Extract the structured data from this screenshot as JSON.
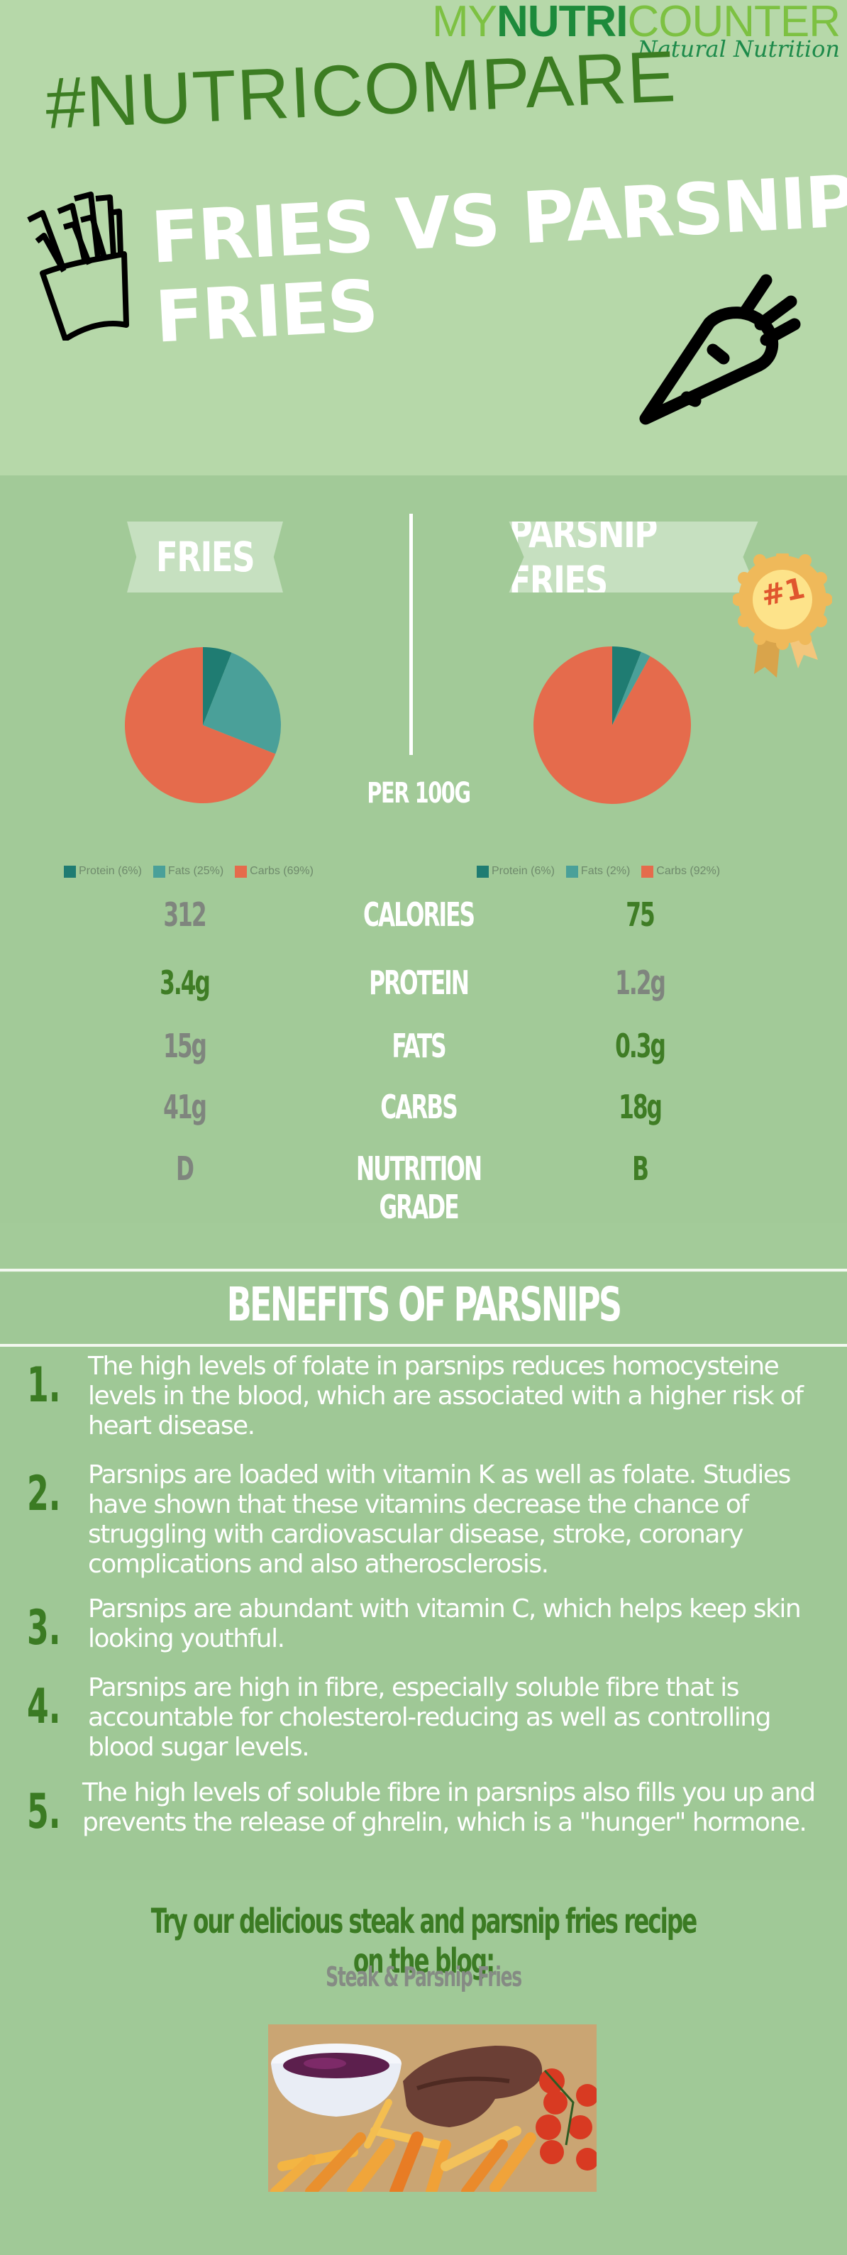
{
  "brand": {
    "logo_my": "MY",
    "logo_nutri": "NUTRI",
    "logo_counter": "COUNTER",
    "tagline": "Natural Nutrition"
  },
  "header": {
    "hashtag": "#NUTRICOMPARE",
    "title_line1": "FRIES VS PARSNIP",
    "title_line2": "FRIES",
    "icons": [
      "fries-icon",
      "carrot-icon"
    ]
  },
  "compare": {
    "left": {
      "name": "FRIES",
      "legend": [
        {
          "label": "Protein (6%)",
          "color": "#1f7c72"
        },
        {
          "label": "Fats (25%)",
          "color": "#4aa099"
        },
        {
          "label": "Carbs (69%)",
          "color": "#e56b4c"
        }
      ]
    },
    "right": {
      "name": "PARSNIP FRIES",
      "badge": "#1",
      "legend": [
        {
          "label": "Protein (6%)",
          "color": "#1f7c72"
        },
        {
          "label": "Fats (2%)",
          "color": "#4aa099"
        },
        {
          "label": "Carbs (92%)",
          "color": "#e56b4c"
        }
      ]
    },
    "per_label": "PER 100G",
    "rows": [
      {
        "label": "CALORIES",
        "left": "312",
        "right": "75",
        "winner": "right"
      },
      {
        "label": "PROTEIN",
        "left": "3.4g",
        "right": "1.2g",
        "winner": "left"
      },
      {
        "label": "FATS",
        "left": "15g",
        "right": "0.3g",
        "winner": "right"
      },
      {
        "label": "CARBS",
        "left": "41g",
        "right": "18g",
        "winner": "right"
      },
      {
        "label": "NUTRITION GRADE",
        "left": "D",
        "right": "B",
        "winner": "right"
      }
    ]
  },
  "chart_data": [
    {
      "type": "pie",
      "title": "FRIES",
      "categories": [
        "Protein",
        "Fats",
        "Carbs"
      ],
      "values": [
        6,
        25,
        69
      ],
      "colors": [
        "#1f7c72",
        "#4aa099",
        "#e56b4c"
      ],
      "legend_position": "bottom"
    },
    {
      "type": "pie",
      "title": "PARSNIP FRIES",
      "categories": [
        "Protein",
        "Fats",
        "Carbs"
      ],
      "values": [
        6,
        2,
        92
      ],
      "colors": [
        "#1f7c72",
        "#4aa099",
        "#e56b4c"
      ],
      "legend_position": "bottom"
    }
  ],
  "benefits": {
    "title": "BENEFITS OF PARSNIPS",
    "items": [
      {
        "num": "1.",
        "text": "The high levels of folate in parsnips reduces homocysteine levels in the blood, which are associated with a higher risk of heart disease."
      },
      {
        "num": "2.",
        "text": "Parsnips are loaded with vitamin K as well as folate. Studies have shown that these vitamins decrease the chance of struggling with cardiovascular disease, stroke, coronary complications and also atherosclerosis."
      },
      {
        "num": "3.",
        "text": "Parsnips are abundant with vitamin C, which helps keep skin looking youthful."
      },
      {
        "num": "4.",
        "text": "Parsnips are high in fibre, especially soluble fibre that is accountable for cholesterol-reducing as well as controlling blood sugar levels."
      },
      {
        "num": "5.",
        "text": "The high levels of soluble fibre in parsnips also fills you up and prevents the release of ghrelin, which is a \"hunger\" hormone."
      }
    ]
  },
  "recipe": {
    "cta": "Try our delicious steak and parsnip fries recipe on the blog:",
    "link_label": "Steak & Parsnip Fries",
    "photo_alt": "steak-with-parsnip-fries-photo"
  },
  "colors": {
    "header_bg": "#b6d8a9",
    "section_bg": "#a2ca98",
    "accent_green": "#3c7d22",
    "grey_value": "#7f857e",
    "protein": "#1f7c72",
    "fats": "#4aa099",
    "carbs": "#e56b4c",
    "badge_gold": "#efb95a"
  }
}
